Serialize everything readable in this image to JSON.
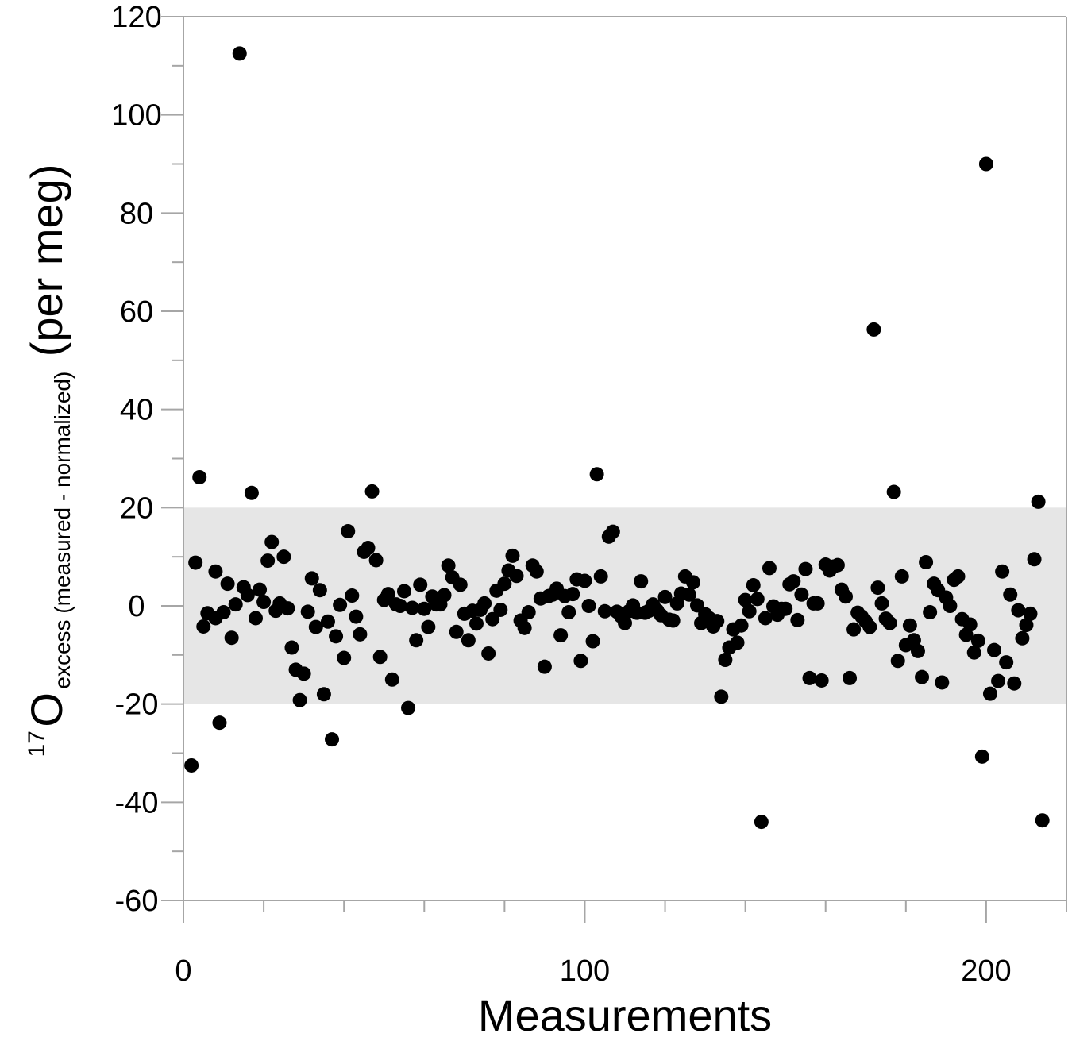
{
  "chart_data": {
    "type": "scatter",
    "xlabel": "Measurements",
    "ylabel_parts": {
      "superscript": "17",
      "main": "O",
      "subscript": "excess (measured - normalized)",
      "unit": "(per meg)"
    },
    "xlim": [
      0,
      220
    ],
    "ylim": [
      -60,
      120
    ],
    "x_ticks": [
      0,
      100,
      200
    ],
    "x_tick_labels": [
      "0",
      "100",
      "200"
    ],
    "y_ticks": [
      -60,
      -40,
      -20,
      0,
      20,
      40,
      60,
      80,
      100,
      120
    ],
    "y_tick_labels": [
      "-60",
      "-40",
      "-20",
      "0",
      "20",
      "40",
      "60",
      "80",
      "100",
      "120"
    ],
    "band": {
      "y_min": -20,
      "y_max": 20,
      "color": "#e6e6e6"
    },
    "grid": false,
    "colors": {
      "marker": "#000000",
      "axis": "#a6a6a6"
    },
    "points": [
      [
        2,
        -32.5
      ],
      [
        3,
        8.8
      ],
      [
        4,
        26.2
      ],
      [
        5,
        -4.2
      ],
      [
        6,
        -1.5
      ],
      [
        8,
        -2.5
      ],
      [
        8,
        7
      ],
      [
        9,
        -23.8
      ],
      [
        10,
        -1.3
      ],
      [
        11,
        4.5
      ],
      [
        12,
        -6.5
      ],
      [
        13,
        0.3
      ],
      [
        14,
        112.5
      ],
      [
        15,
        3.8
      ],
      [
        16,
        2.2
      ],
      [
        17,
        23
      ],
      [
        18,
        -2.5
      ],
      [
        19,
        3.3
      ],
      [
        20,
        0.8
      ],
      [
        21,
        9.2
      ],
      [
        22,
        13
      ],
      [
        23,
        -1
      ],
      [
        24,
        0.5
      ],
      [
        25,
        10
      ],
      [
        26,
        -0.5
      ],
      [
        27,
        -8.5
      ],
      [
        28,
        -13
      ],
      [
        29,
        -19.2
      ],
      [
        30,
        -13.8
      ],
      [
        31,
        -1.2
      ],
      [
        32,
        5.6
      ],
      [
        33,
        -4.3
      ],
      [
        34,
        3.2
      ],
      [
        35,
        -18
      ],
      [
        36,
        -3.2
      ],
      [
        37,
        -27.2
      ],
      [
        38,
        -6.2
      ],
      [
        39,
        0.2
      ],
      [
        40,
        -10.6
      ],
      [
        41,
        15.2
      ],
      [
        42,
        2.1
      ],
      [
        43,
        -2.2
      ],
      [
        44,
        -5.8
      ],
      [
        45,
        11
      ],
      [
        46,
        11.8
      ],
      [
        47,
        23.3
      ],
      [
        48,
        9.3
      ],
      [
        49,
        -10.4
      ],
      [
        50,
        1.2
      ],
      [
        51,
        2.4
      ],
      [
        52,
        -15
      ],
      [
        53,
        0.3
      ],
      [
        54,
        0
      ],
      [
        55,
        3
      ],
      [
        56,
        -20.8
      ],
      [
        57,
        -0.4
      ],
      [
        58,
        -7
      ],
      [
        59,
        4.3
      ],
      [
        60,
        -0.6
      ],
      [
        61,
        -4.3
      ],
      [
        62,
        1.9
      ],
      [
        63,
        0.3
      ],
      [
        64,
        0.3
      ],
      [
        65,
        2.2
      ],
      [
        66,
        8.2
      ],
      [
        67,
        5.8
      ],
      [
        68,
        -5.3
      ],
      [
        69,
        4.3
      ],
      [
        70,
        -1.6
      ],
      [
        71,
        -7
      ],
      [
        72,
        -1
      ],
      [
        73,
        -3.6
      ],
      [
        74,
        -0.8
      ],
      [
        75,
        0.5
      ],
      [
        76,
        -9.7
      ],
      [
        77,
        -2.7
      ],
      [
        78,
        3.1
      ],
      [
        79,
        -0.8
      ],
      [
        80,
        4.5
      ],
      [
        81,
        7.2
      ],
      [
        82,
        10.2
      ],
      [
        83,
        6.1
      ],
      [
        84,
        -3
      ],
      [
        85,
        -4.5
      ],
      [
        86,
        -1.3
      ],
      [
        87,
        8.2
      ],
      [
        88,
        7
      ],
      [
        89,
        1.5
      ],
      [
        90,
        -12.4
      ],
      [
        91,
        2
      ],
      [
        92,
        2.3
      ],
      [
        93,
        3.5
      ],
      [
        94,
        -6
      ],
      [
        95,
        2
      ],
      [
        96,
        -1.3
      ],
      [
        97,
        2.4
      ],
      [
        98,
        5.4
      ],
      [
        99,
        -11.2
      ],
      [
        100,
        5.1
      ],
      [
        101,
        0
      ],
      [
        102,
        -7.2
      ],
      [
        103,
        26.8
      ],
      [
        104,
        6
      ],
      [
        105,
        -1.1
      ],
      [
        106,
        14.1
      ],
      [
        107,
        15.1
      ],
      [
        108,
        -1.2
      ],
      [
        109,
        -2.1
      ],
      [
        110,
        -3.5
      ],
      [
        111,
        -1.1
      ],
      [
        112,
        0.1
      ],
      [
        113,
        -1.4
      ],
      [
        114,
        5
      ],
      [
        115,
        -1.4
      ],
      [
        116,
        -1
      ],
      [
        117,
        0.3
      ],
      [
        118,
        -0.9
      ],
      [
        119,
        -1.9
      ],
      [
        120,
        1.8
      ],
      [
        121,
        -2.8
      ],
      [
        122,
        -3
      ],
      [
        123,
        0.5
      ],
      [
        124,
        2.5
      ],
      [
        125,
        6
      ],
      [
        126,
        2.3
      ],
      [
        127,
        4.8
      ],
      [
        128,
        0.1
      ],
      [
        129,
        -3.5
      ],
      [
        130,
        -1.7
      ],
      [
        131,
        -2.5
      ],
      [
        132,
        -4.2
      ],
      [
        133,
        -3.1
      ],
      [
        134,
        -18.5
      ],
      [
        135,
        -11
      ],
      [
        136,
        -8.5
      ],
      [
        137,
        -4.8
      ],
      [
        138,
        -7.5
      ],
      [
        139,
        -4
      ],
      [
        140,
        1.2
      ],
      [
        141,
        -1.1
      ],
      [
        142,
        4.2
      ],
      [
        143,
        1.4
      ],
      [
        144,
        -44
      ],
      [
        145,
        -2.5
      ],
      [
        146,
        7.7
      ],
      [
        147,
        -0.1
      ],
      [
        148,
        -1.8
      ],
      [
        149,
        -0.6
      ],
      [
        150,
        -0.6
      ],
      [
        151,
        4.4
      ],
      [
        152,
        5
      ],
      [
        153,
        -2.9
      ],
      [
        154,
        2.3
      ],
      [
        155,
        7.5
      ],
      [
        156,
        -14.7
      ],
      [
        157,
        0.5
      ],
      [
        158,
        0.5
      ],
      [
        159,
        -15.2
      ],
      [
        160,
        8.4
      ],
      [
        161,
        7.2
      ],
      [
        162,
        8
      ],
      [
        163,
        8.3
      ],
      [
        164,
        3.3
      ],
      [
        165,
        1.9
      ],
      [
        166,
        -14.7
      ],
      [
        167,
        -4.8
      ],
      [
        168,
        -1.4
      ],
      [
        169,
        -2.2
      ],
      [
        170,
        -3.2
      ],
      [
        171,
        -4.3
      ],
      [
        172,
        56.3
      ],
      [
        173,
        3.7
      ],
      [
        174,
        0.5
      ],
      [
        175,
        -2.6
      ],
      [
        176,
        -3.5
      ],
      [
        177,
        23.2
      ],
      [
        178,
        -11.2
      ],
      [
        179,
        6
      ],
      [
        180,
        -8
      ],
      [
        181,
        -4
      ],
      [
        182,
        -7
      ],
      [
        183,
        -9.2
      ],
      [
        184,
        -14.5
      ],
      [
        185,
        8.9
      ],
      [
        186,
        -1.3
      ],
      [
        187,
        4.5
      ],
      [
        188,
        3.2
      ],
      [
        189,
        -15.6
      ],
      [
        190,
        1.7
      ],
      [
        191,
        0
      ],
      [
        192,
        5.3
      ],
      [
        193,
        6
      ],
      [
        194,
        -2.7
      ],
      [
        195,
        -5.9
      ],
      [
        196,
        -3.8
      ],
      [
        197,
        -9.5
      ],
      [
        198,
        -7.1
      ],
      [
        199,
        -30.7
      ],
      [
        200,
        90
      ],
      [
        201,
        -17.9
      ],
      [
        202,
        -9
      ],
      [
        203,
        -15.3
      ],
      [
        204,
        7
      ],
      [
        205,
        -11.5
      ],
      [
        206,
        2.3
      ],
      [
        207,
        -15.8
      ],
      [
        208,
        -0.9
      ],
      [
        209,
        -6.6
      ],
      [
        210,
        -3.9
      ],
      [
        211,
        -1.6
      ],
      [
        212,
        9.5
      ],
      [
        213,
        21.2
      ],
      [
        214,
        -43.7
      ]
    ]
  }
}
